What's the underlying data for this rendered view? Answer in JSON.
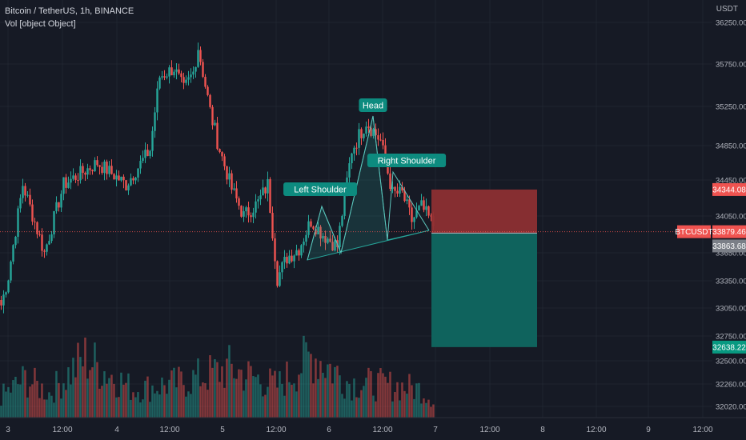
{
  "header": {
    "symbol_line": "Bitcoin / TetherUS, 1h, BINANCE",
    "volume_line": "Vol [object Object]"
  },
  "price_axis": {
    "unit": "USDT",
    "ticks": [
      "36250.00",
      "35750.00",
      "35250.00",
      "34850.00",
      "34450.00",
      "34050.00",
      "33650.00",
      "33350.00",
      "33050.00",
      "32750.00",
      "32500.00",
      "32260.00",
      "32020.00"
    ]
  },
  "time_axis": {
    "ticks": [
      "3",
      "12:00",
      "4",
      "12:00",
      "5",
      "12:00",
      "6",
      "12:00",
      "7",
      "12:00",
      "8",
      "12:00",
      "9",
      "12:00"
    ]
  },
  "badges": {
    "stop": "34344.08",
    "symbol": "BTCUSDT",
    "last": "33879.46",
    "entry": "33863.68",
    "target": "32638.22"
  },
  "annotations": {
    "left_shoulder": "Left Shoulder",
    "head": "Head",
    "right_shoulder": "Right Shoulder"
  },
  "colors": {
    "background": "#161a25",
    "up": "#26a69a",
    "down": "#ef5350",
    "stop_zone": "#8c2f32",
    "target_zone": "#0f6760",
    "label_teal": "#0d8b7f",
    "last_price": "#ef5350",
    "entry_badge": "#7b7f87"
  },
  "chart_data": {
    "type": "candlestick",
    "title": "Bitcoin / TetherUS, 1h, BINANCE",
    "ylim": [
      31950,
      36420
    ],
    "last_price": 33879.46,
    "position": {
      "side": "short",
      "entry": 33863.68,
      "stop": 34344.08,
      "target": 32638.22
    },
    "pattern": "head-and-shoulders",
    "anchors": [
      [
        33080,
        0
      ],
      [
        33400,
        3
      ],
      [
        34400,
        9
      ],
      [
        33650,
        18
      ],
      [
        34400,
        26
      ],
      [
        34650,
        40
      ],
      [
        34400,
        52
      ],
      [
        34800,
        62
      ],
      [
        35600,
        66
      ],
      [
        35700,
        72
      ],
      [
        35450,
        76
      ],
      [
        35650,
        80
      ],
      [
        35950,
        82
      ],
      [
        35200,
        87
      ],
      [
        34800,
        91
      ],
      [
        34350,
        96
      ],
      [
        34050,
        101
      ],
      [
        34200,
        107
      ],
      [
        34400,
        111
      ],
      [
        33380,
        115
      ],
      [
        33600,
        119
      ],
      [
        33700,
        124
      ],
      [
        34000,
        129
      ],
      [
        33850,
        134
      ],
      [
        33720,
        140
      ],
      [
        34800,
        146
      ],
      [
        35100,
        152
      ],
      [
        34900,
        158
      ],
      [
        34300,
        163
      ],
      [
        34300,
        167
      ],
      [
        34000,
        171
      ],
      [
        34150,
        175
      ],
      [
        33950,
        180
      ]
    ],
    "volume_anchors": [
      [
        30,
        0
      ],
      [
        55,
        10
      ],
      [
        35,
        20
      ],
      [
        85,
        35
      ],
      [
        40,
        55
      ],
      [
        50,
        75
      ],
      [
        70,
        95
      ],
      [
        45,
        115
      ],
      [
        90,
        130
      ],
      [
        50,
        145
      ],
      [
        45,
        165
      ],
      [
        40,
        175
      ],
      [
        25,
        180
      ]
    ]
  }
}
